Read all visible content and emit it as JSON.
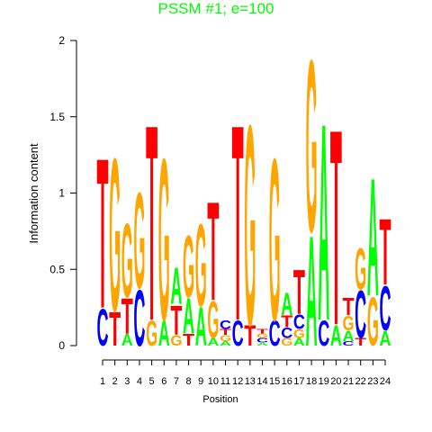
{
  "chart_data": {
    "type": "logo",
    "title": "PSSM #1; e=100",
    "title_color": "#00ff00",
    "x_label": "Position",
    "y_label": "Information content",
    "x": [
      1,
      2,
      3,
      4,
      5,
      6,
      7,
      8,
      9,
      10,
      11,
      12,
      13,
      14,
      15,
      16,
      17,
      18,
      19,
      20,
      21,
      22,
      23,
      24
    ],
    "xlim": [
      0.5,
      24.5
    ],
    "xticks": [
      1,
      2,
      3,
      4,
      5,
      6,
      7,
      8,
      9,
      10,
      11,
      12,
      13,
      14,
      15,
      16,
      17,
      18,
      19,
      20,
      21,
      22,
      23,
      24
    ],
    "ylim": [
      0,
      2
    ],
    "yticks": [
      0,
      0.5,
      1,
      1.5,
      2
    ],
    "colors": {
      "A": "#00ff00",
      "C": "#0000ff",
      "G": "#ffa500",
      "T": "#ff0000"
    },
    "stacks": [
      {
        "letters": [
          {
            "letter": "C",
            "value": 0.25
          },
          {
            "letter": "T",
            "value": 1.02
          }
        ]
      },
      {
        "letters": [
          {
            "letter": "T",
            "value": 0.23
          },
          {
            "letter": "G",
            "value": 1.04
          }
        ]
      },
      {
        "letters": [
          {
            "letter": "A",
            "value": 0.08
          },
          {
            "letter": "T",
            "value": 0.24
          },
          {
            "letter": "G",
            "value": 0.5
          }
        ]
      },
      {
        "letters": [
          {
            "letter": "C",
            "value": 0.38
          },
          {
            "letter": "G",
            "value": 0.65
          }
        ]
      },
      {
        "letters": [
          {
            "letter": "G",
            "value": 0.17
          },
          {
            "letter": "T",
            "value": 1.33
          }
        ]
      },
      {
        "letters": [
          {
            "letter": "A",
            "value": 0.17
          },
          {
            "letter": "G",
            "value": 1.1
          }
        ]
      },
      {
        "letters": [
          {
            "letter": "G",
            "value": 0.07
          },
          {
            "letter": "T",
            "value": 0.2
          },
          {
            "letter": "A",
            "value": 0.25
          }
        ]
      },
      {
        "letters": [
          {
            "letter": "T",
            "value": 0.08
          },
          {
            "letter": "A",
            "value": 0.24
          },
          {
            "letter": "G",
            "value": 0.42
          }
        ]
      },
      {
        "letters": [
          {
            "letter": "A",
            "value": 0.26
          },
          {
            "letter": "G",
            "value": 0.56
          }
        ]
      },
      {
        "letters": [
          {
            "letter": "A",
            "value": 0.05
          },
          {
            "letter": "G",
            "value": 0.25
          },
          {
            "letter": "T",
            "value": 0.67
          }
        ]
      },
      {
        "letters": [
          {
            "letter": "A",
            "value": 0.03
          },
          {
            "letter": "G",
            "value": 0.04
          },
          {
            "letter": "T",
            "value": 0.04
          },
          {
            "letter": "C",
            "value": 0.06
          }
        ]
      },
      {
        "letters": [
          {
            "letter": "C",
            "value": 0.17
          },
          {
            "letter": "T",
            "value": 1.33
          }
        ]
      },
      {
        "letters": [
          {
            "letter": "T",
            "value": 0.14
          },
          {
            "letter": "G",
            "value": 1.36
          }
        ]
      },
      {
        "letters": [
          {
            "letter": "A",
            "value": 0.02
          },
          {
            "letter": "C",
            "value": 0.03
          },
          {
            "letter": "G",
            "value": 0.03
          },
          {
            "letter": "T",
            "value": 0.03
          }
        ]
      },
      {
        "letters": [
          {
            "letter": "C",
            "value": 0.17
          },
          {
            "letter": "G",
            "value": 1.1
          }
        ]
      },
      {
        "letters": [
          {
            "letter": "G",
            "value": 0.05
          },
          {
            "letter": "C",
            "value": 0.07
          },
          {
            "letter": "T",
            "value": 0.08
          },
          {
            "letter": "A",
            "value": 0.15
          }
        ]
      },
      {
        "letters": [
          {
            "letter": "A",
            "value": 0.05
          },
          {
            "letter": "G",
            "value": 0.06
          },
          {
            "letter": "C",
            "value": 0.1
          },
          {
            "letter": "T",
            "value": 0.3
          }
        ]
      },
      {
        "letters": [
          {
            "letter": "A",
            "value": 0.75
          },
          {
            "letter": "G",
            "value": 1.17
          }
        ]
      },
      {
        "letters": [
          {
            "letter": "C",
            "value": 0.17
          },
          {
            "letter": "A",
            "value": 1.34
          }
        ]
      },
      {
        "letters": [
          {
            "letter": "A",
            "value": 0.14
          },
          {
            "letter": "T",
            "value": 1.33
          }
        ]
      },
      {
        "letters": [
          {
            "letter": "C",
            "value": 0.03
          },
          {
            "letter": "A",
            "value": 0.07
          },
          {
            "letter": "G",
            "value": 0.1
          },
          {
            "letter": "T",
            "value": 0.12
          }
        ]
      },
      {
        "letters": [
          {
            "letter": "T",
            "value": 0.05
          },
          {
            "letter": "C",
            "value": 0.32
          },
          {
            "letter": "G",
            "value": 0.28
          }
        ]
      },
      {
        "letters": [
          {
            "letter": "G",
            "value": 0.33
          },
          {
            "letter": "A",
            "value": 0.8
          }
        ]
      },
      {
        "letters": [
          {
            "letter": "A",
            "value": 0.1
          },
          {
            "letter": "C",
            "value": 0.3
          },
          {
            "letter": "T",
            "value": 0.45
          }
        ]
      }
    ]
  }
}
